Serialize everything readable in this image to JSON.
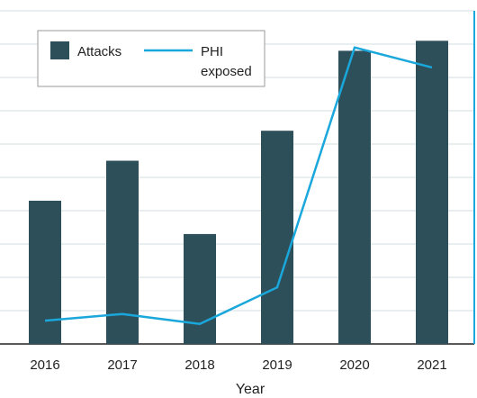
{
  "chart_data": {
    "type": "bar",
    "categories": [
      "2016",
      "2017",
      "2018",
      "2019",
      "2020",
      "2021"
    ],
    "xlabel": "Year",
    "series": [
      {
        "name": "Attacks",
        "kind": "bar",
        "axis": "left",
        "values": [
          43,
          55,
          33,
          64,
          88,
          91
        ]
      },
      {
        "name": "PHI exposed",
        "name_lines": [
          "PHI",
          "exposed"
        ],
        "kind": "line",
        "axis": "right",
        "values": [
          7,
          9,
          6,
          17,
          89,
          83
        ]
      }
    ],
    "ylim": [
      0,
      100
    ],
    "y2lim": [
      0,
      100
    ],
    "grid": true,
    "legend": "top-left",
    "colors": {
      "bar": "#2c4f5a",
      "line": "#1aa7db",
      "grid": "#d3dde2",
      "axis_right": "#1aa7db"
    }
  }
}
